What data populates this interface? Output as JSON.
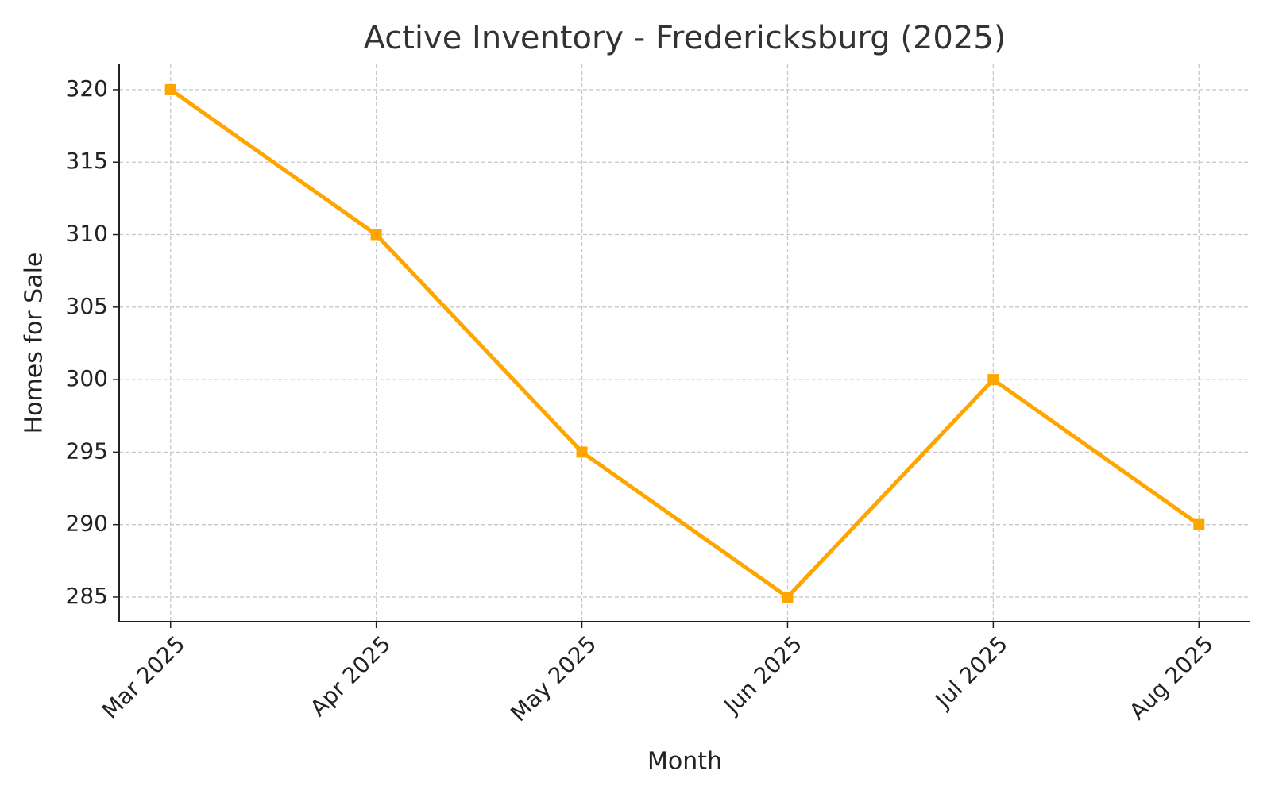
{
  "chart_data": {
    "type": "line",
    "title": "Active Inventory - Fredericksburg (2025)",
    "x_label": "Month",
    "y_label": "Homes for Sale",
    "categories": [
      "Mar 2025",
      "Apr 2025",
      "May 2025",
      "Jun 2025",
      "Jul 2025",
      "Aug 2025"
    ],
    "series": [
      {
        "name": "Active Inventory",
        "color": "#ffa500",
        "values": [
          320,
          310,
          295,
          285,
          300,
          290
        ]
      }
    ],
    "ylim": [
      283.3,
      321.75
    ],
    "yticks": [
      285,
      290,
      295,
      300,
      305,
      310,
      315,
      320
    ],
    "grid": true
  }
}
